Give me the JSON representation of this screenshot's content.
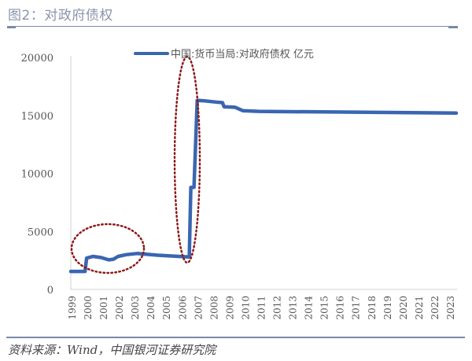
{
  "header": {
    "title": "图2：对政府债权"
  },
  "footer": {
    "source": "资料来源：Wind，中国银河证券研究院"
  },
  "colors": {
    "line": "#3a66b0",
    "annotation": "#8b1a1a",
    "rule": "#7a8aa8",
    "axis": "#d0d0d0"
  },
  "chart_data": {
    "type": "line",
    "title": "图2：对政府债权",
    "xlabel": "",
    "ylabel": "",
    "ylim": [
      0,
      20000
    ],
    "yticks": [
      "0",
      "5000",
      "10000",
      "15000",
      "20000"
    ],
    "xticks": [
      "1999",
      "2000",
      "2001",
      "2002",
      "2003",
      "2004",
      "2005",
      "2006",
      "2007",
      "2008",
      "2009",
      "2010",
      "2011",
      "2012",
      "2013",
      "2014",
      "2015",
      "2016",
      "2017",
      "2018",
      "2019",
      "2020",
      "2021",
      "2022",
      "2023"
    ],
    "legend": {
      "position": "top",
      "entries": [
        "中国:货币当局:对政府债权 亿元"
      ]
    },
    "grid": false,
    "series": [
      {
        "name": "中国:货币当局:对政府债权 亿元",
        "x": [
          1999.0,
          1999.9,
          2000.0,
          2000.4,
          2000.9,
          2001.4,
          2001.7,
          2002.0,
          2002.5,
          2003.2,
          2004.5,
          2006.5,
          2006.6,
          2006.8,
          2007.0,
          2007.5,
          2008.2,
          2008.6,
          2008.7,
          2009.4,
          2009.9,
          2010.9,
          2023.4
        ],
        "values": [
          1550,
          1550,
          2700,
          2850,
          2750,
          2550,
          2600,
          2850,
          3000,
          3100,
          2950,
          2800,
          8800,
          8800,
          16300,
          16250,
          16150,
          16100,
          15750,
          15700,
          15400,
          15350,
          15200
        ]
      }
    ],
    "annotations": [
      {
        "type": "dotted-ellipse",
        "region": "2000-2003",
        "note": "highlight small rise"
      },
      {
        "type": "dotted-ellipse",
        "region": "2006-2007",
        "note": "highlight jump to ~16000"
      }
    ]
  }
}
